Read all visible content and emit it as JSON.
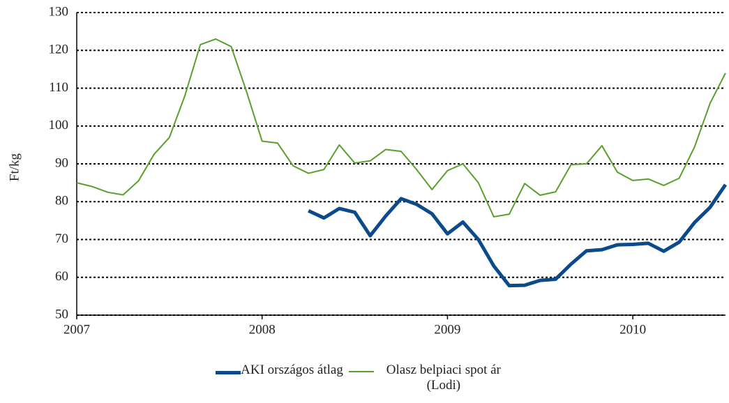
{
  "chart_data": {
    "type": "line",
    "ylabel": "Ft/kg",
    "categories": [
      "2007",
      null,
      null,
      null,
      null,
      null,
      null,
      null,
      null,
      null,
      null,
      null,
      "2008",
      null,
      null,
      null,
      null,
      null,
      null,
      null,
      null,
      null,
      null,
      null,
      "2009",
      null,
      null,
      null,
      null,
      null,
      null,
      null,
      null,
      null,
      null,
      null,
      "2010",
      null,
      null,
      null,
      null,
      null,
      null
    ],
    "series": [
      {
        "name": "AKI országos átlag",
        "color": "#0b4a8b",
        "width": 5,
        "values": [
          null,
          null,
          null,
          null,
          null,
          null,
          null,
          null,
          null,
          null,
          null,
          null,
          null,
          null,
          null,
          77.6,
          75.7,
          78.2,
          77.2,
          71,
          76.2,
          80.8,
          79.3,
          76.8,
          71.5,
          74.6,
          70,
          63,
          57.8,
          57.9,
          59.2,
          59.5,
          63.5,
          67,
          67.3,
          68.6,
          68.7,
          69,
          66.9,
          69.3,
          74.5,
          78.5,
          84.5
        ]
      },
      {
        "name": "Olasz belpiaci spot ár (Lodi)",
        "color": "#5a9e2c",
        "width": 2,
        "values": [
          85,
          84,
          82.5,
          81.8,
          85.5,
          92.5,
          97,
          108,
          121.5,
          123,
          121,
          109,
          96,
          95.5,
          89.5,
          87.5,
          88.5,
          95,
          90.2,
          90.8,
          93.8,
          93.3,
          88.5,
          83.2,
          88.2,
          90,
          85,
          76,
          76.7,
          84.8,
          81.7,
          82.6,
          89.8,
          90,
          94.8,
          87.8,
          85.6,
          86,
          84.3,
          86.2,
          94.5,
          106,
          114
        ]
      }
    ],
    "ylim": [
      50,
      130
    ],
    "yticks": [
      50,
      60,
      70,
      80,
      90,
      100,
      110,
      120,
      130
    ],
    "grid": true
  }
}
